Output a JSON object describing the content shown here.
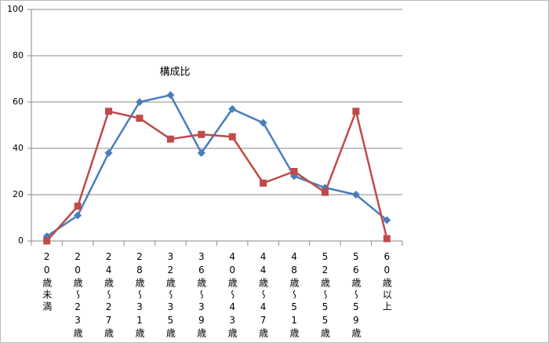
{
  "chart_data": {
    "type": "line",
    "title": "構成比",
    "categories": [
      "20歳未満",
      "20歳～23歳",
      "24歳～27歳",
      "28歳～31歳",
      "32歳～35歳",
      "36歳～39歳",
      "40歳～43歳",
      "44歳～47歳",
      "48歳～51歳",
      "52歳～55歳",
      "56歳～59歳",
      "60歳以上"
    ],
    "series": [
      {
        "color": "#4a7ebb",
        "marker": "diamond",
        "values": [
          2,
          11,
          38,
          60,
          63,
          38,
          57,
          51,
          28,
          23,
          20,
          9
        ]
      },
      {
        "color": "#be4b48",
        "marker": "square",
        "values": [
          0,
          15,
          56,
          53,
          44,
          46,
          45,
          25,
          30,
          21,
          56,
          1
        ]
      }
    ],
    "ylim": [
      0,
      100
    ],
    "yticks": [
      0,
      20,
      40,
      60,
      80,
      100
    ],
    "grid": true
  }
}
